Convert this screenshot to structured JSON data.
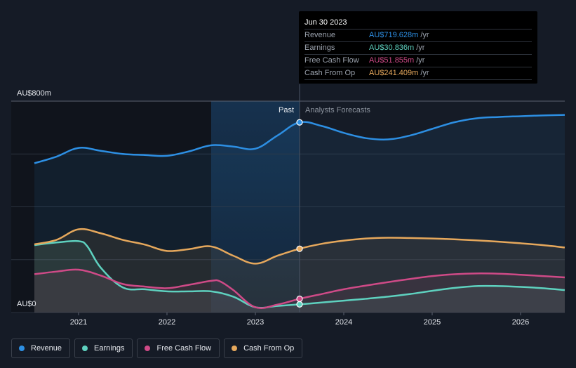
{
  "chart_data": {
    "type": "area",
    "y_axis": {
      "top_label": "AU$800m",
      "bottom_label": "AU$0",
      "ylim": [
        0,
        800
      ]
    },
    "x_ticks": [
      "2021",
      "2022",
      "2023",
      "2024",
      "2025",
      "2026"
    ],
    "x_range": [
      2020.5,
      2026.5
    ],
    "past_label": "Past",
    "forecast_label": "Analysts Forecasts",
    "past_highlight_start": 2022.5,
    "divider_x": 2023.5,
    "series": [
      {
        "name": "Revenue",
        "color": "#2d8fe3",
        "points": [
          [
            2020.5,
            565
          ],
          [
            2020.75,
            590
          ],
          [
            2021.0,
            623
          ],
          [
            2021.25,
            612
          ],
          [
            2021.5,
            600
          ],
          [
            2021.75,
            596
          ],
          [
            2022.0,
            593
          ],
          [
            2022.25,
            610
          ],
          [
            2022.5,
            633
          ],
          [
            2022.75,
            628
          ],
          [
            2023.0,
            620
          ],
          [
            2023.25,
            670
          ],
          [
            2023.5,
            719.628
          ],
          [
            2023.75,
            706
          ],
          [
            2024.0,
            680
          ],
          [
            2024.25,
            660
          ],
          [
            2024.5,
            655
          ],
          [
            2024.75,
            670
          ],
          [
            2025.0,
            695
          ],
          [
            2025.25,
            720
          ],
          [
            2025.5,
            735
          ],
          [
            2025.75,
            740
          ],
          [
            2026.0,
            743
          ],
          [
            2026.25,
            746
          ],
          [
            2026.5,
            748
          ]
        ]
      },
      {
        "name": "Earnings",
        "color": "#5ed1bf",
        "points": [
          [
            2020.5,
            255
          ],
          [
            2020.75,
            265
          ],
          [
            2021.0,
            270
          ],
          [
            2021.1,
            250
          ],
          [
            2021.25,
            170
          ],
          [
            2021.5,
            95
          ],
          [
            2021.75,
            88
          ],
          [
            2022.0,
            80
          ],
          [
            2022.25,
            80
          ],
          [
            2022.5,
            80
          ],
          [
            2022.75,
            60
          ],
          [
            2023.0,
            20
          ],
          [
            2023.25,
            25
          ],
          [
            2023.5,
            30.836
          ],
          [
            2023.75,
            38
          ],
          [
            2024.0,
            45
          ],
          [
            2024.25,
            52
          ],
          [
            2024.5,
            60
          ],
          [
            2024.75,
            70
          ],
          [
            2025.0,
            82
          ],
          [
            2025.25,
            93
          ],
          [
            2025.5,
            100
          ],
          [
            2025.75,
            100
          ],
          [
            2026.0,
            97
          ],
          [
            2026.25,
            92
          ],
          [
            2026.5,
            85
          ]
        ]
      },
      {
        "name": "Free Cash Flow",
        "color": "#cf4a87",
        "points": [
          [
            2020.5,
            145
          ],
          [
            2020.75,
            155
          ],
          [
            2021.0,
            162
          ],
          [
            2021.25,
            140
          ],
          [
            2021.5,
            108
          ],
          [
            2021.75,
            98
          ],
          [
            2022.0,
            92
          ],
          [
            2022.25,
            105
          ],
          [
            2022.5,
            120
          ],
          [
            2022.6,
            118
          ],
          [
            2022.75,
            85
          ],
          [
            2023.0,
            20
          ],
          [
            2023.25,
            30
          ],
          [
            2023.5,
            51.855
          ],
          [
            2023.75,
            70
          ],
          [
            2024.0,
            88
          ],
          [
            2024.25,
            102
          ],
          [
            2024.5,
            115
          ],
          [
            2024.75,
            127
          ],
          [
            2025.0,
            138
          ],
          [
            2025.25,
            145
          ],
          [
            2025.5,
            148
          ],
          [
            2025.75,
            147
          ],
          [
            2026.0,
            143
          ],
          [
            2026.25,
            138
          ],
          [
            2026.5,
            133
          ]
        ]
      },
      {
        "name": "Cash From Op",
        "color": "#e6a85c",
        "points": [
          [
            2020.5,
            258
          ],
          [
            2020.75,
            275
          ],
          [
            2021.0,
            315
          ],
          [
            2021.25,
            300
          ],
          [
            2021.5,
            275
          ],
          [
            2021.75,
            257
          ],
          [
            2022.0,
            233
          ],
          [
            2022.25,
            240
          ],
          [
            2022.5,
            250
          ],
          [
            2022.75,
            215
          ],
          [
            2023.0,
            185
          ],
          [
            2023.25,
            215
          ],
          [
            2023.5,
            241.409
          ],
          [
            2023.75,
            260
          ],
          [
            2024.0,
            272
          ],
          [
            2024.25,
            280
          ],
          [
            2024.5,
            283
          ],
          [
            2024.75,
            282
          ],
          [
            2025.0,
            280
          ],
          [
            2025.25,
            277
          ],
          [
            2025.5,
            273
          ],
          [
            2025.75,
            268
          ],
          [
            2026.0,
            262
          ],
          [
            2026.25,
            255
          ],
          [
            2026.5,
            246
          ]
        ]
      }
    ]
  },
  "tooltip": {
    "date": "Jun 30 2023",
    "rows": [
      {
        "label": "Revenue",
        "value": "AU$719.628m",
        "unit": "/yr",
        "color": "#2d8fe3"
      },
      {
        "label": "Earnings",
        "value": "AU$30.836m",
        "unit": "/yr",
        "color": "#5ed1bf"
      },
      {
        "label": "Free Cash Flow",
        "value": "AU$51.855m",
        "unit": "/yr",
        "color": "#cf4a87"
      },
      {
        "label": "Cash From Op",
        "value": "AU$241.409m",
        "unit": "/yr",
        "color": "#e6a85c"
      }
    ]
  },
  "legend": [
    {
      "label": "Revenue",
      "color": "#2d8fe3"
    },
    {
      "label": "Earnings",
      "color": "#5ed1bf"
    },
    {
      "label": "Free Cash Flow",
      "color": "#cf4a87"
    },
    {
      "label": "Cash From Op",
      "color": "#e6a85c"
    }
  ]
}
